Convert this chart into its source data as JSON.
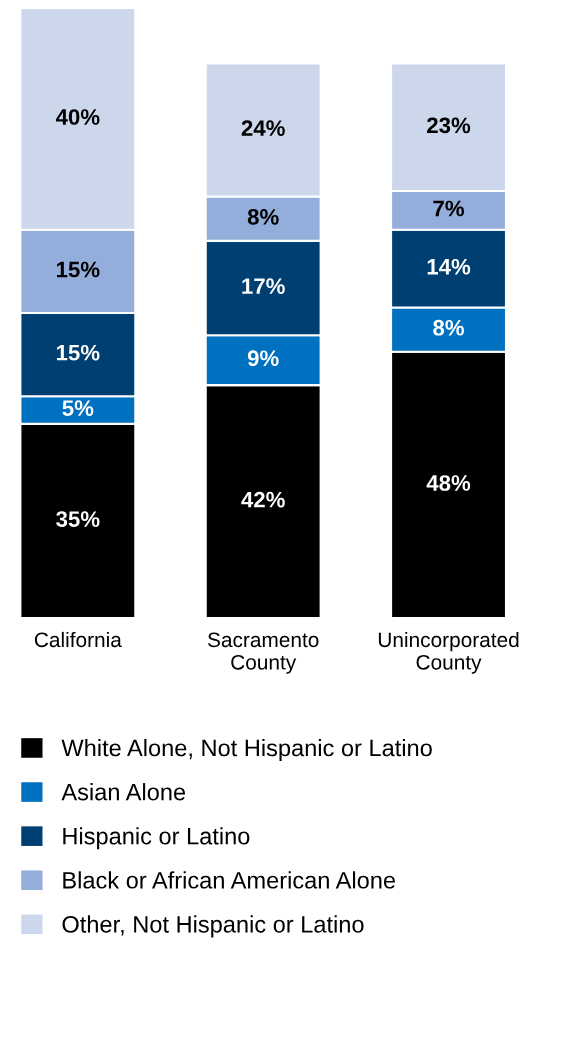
{
  "chart_data": {
    "type": "bar",
    "stacked": true,
    "legend": "bottom",
    "categories": [
      "California",
      "Sacramento\nCounty",
      "Unincorporated\nCounty"
    ],
    "series": [
      {
        "name": "White Alone, Not Hispanic or Latino",
        "color": "#000000",
        "values": [
          35,
          42,
          48
        ],
        "value_labels": [
          "35%",
          "42%",
          "48%"
        ]
      },
      {
        "name": "Asian Alone",
        "color": "#0070c0",
        "values": [
          5,
          9,
          8
        ],
        "value_labels": [
          "5%",
          "9%",
          "8%"
        ]
      },
      {
        "name": "Hispanic or Latino",
        "color": "#003f72",
        "values": [
          15,
          17,
          14
        ],
        "value_labels": [
          "15%",
          "17%",
          "14%"
        ]
      },
      {
        "name": "Black or African American Alone",
        "color": "#94aedb",
        "values": [
          15,
          8,
          7
        ],
        "value_labels": [
          "15%",
          "8%",
          "7%"
        ]
      },
      {
        "name": "Other, Not Hispanic or Latino",
        "color": "#cdd7ec",
        "values": [
          40,
          24,
          23
        ],
        "value_labels": [
          "40%",
          "24%",
          "23%"
        ]
      }
    ]
  }
}
